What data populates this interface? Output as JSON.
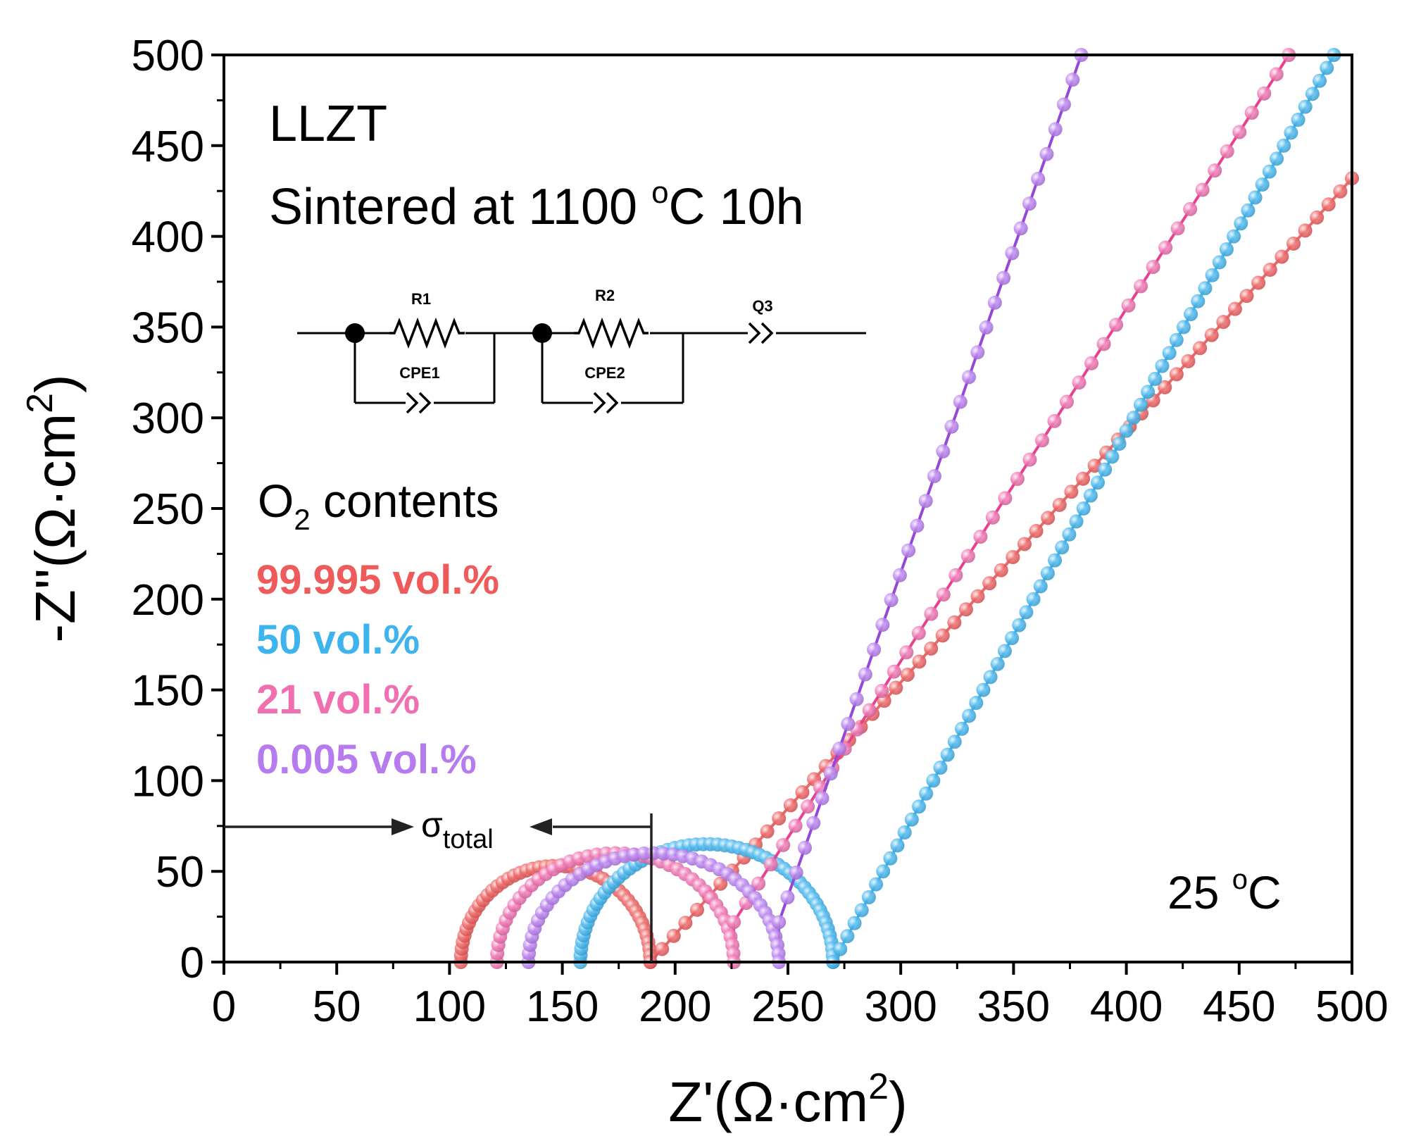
{
  "chart_data": {
    "type": "scatter",
    "title": "",
    "xlabel": "Z'(Ω·cm²)",
    "ylabel": "-Z''(Ω·cm²)",
    "xlim": [
      0,
      500
    ],
    "ylim": [
      0,
      500
    ],
    "xticks": [
      0,
      50,
      100,
      150,
      200,
      250,
      300,
      350,
      400,
      450,
      500
    ],
    "yticks": [
      0,
      50,
      100,
      150,
      200,
      250,
      300,
      350,
      400,
      450,
      500
    ],
    "grid": false,
    "annotations": {
      "material": "LLZT",
      "sintering": "Sintered at 1100 °C 10h",
      "temperature": "25 °C",
      "sigma": "σ",
      "sigma_sub": "total",
      "circuit": {
        "r1": "R1",
        "cpe1": "CPE1",
        "r2": "R2",
        "cpe2": "CPE2",
        "q3": "Q3"
      }
    },
    "legend": {
      "title": "O₂ contents",
      "position": "left"
    },
    "series": [
      {
        "name": "99.995 vol.%",
        "color": "#ef5b5b",
        "line_color": "#e9686c",
        "segments": [
          {
            "kind": "arc",
            "x_start": 105,
            "x_end": 189,
            "height": 53,
            "n": 45
          },
          {
            "kind": "line",
            "x_start": 189,
            "y_start": 0,
            "x_end": 500,
            "y_end": 432,
            "n": 60
          }
        ]
      },
      {
        "name": "50 vol.%",
        "color": "#3db4ee",
        "line_color": "#41b0e4",
        "segments": [
          {
            "kind": "arc",
            "x_start": 158,
            "x_end": 270,
            "height": 65,
            "n": 55
          },
          {
            "kind": "line",
            "x_start": 270,
            "y_start": 0,
            "x_end": 492,
            "y_end": 500,
            "n": 70
          }
        ]
      },
      {
        "name": "21 vol.%",
        "color": "#f06fb0",
        "line_color": "#e8408f",
        "segments": [
          {
            "kind": "arc",
            "x_start": 121,
            "x_end": 226,
            "height": 60,
            "n": 40
          },
          {
            "kind": "line",
            "x_start": 226,
            "y_start": 22,
            "x_end": 472,
            "y_end": 500,
            "n": 45
          }
        ]
      },
      {
        "name": "0.005 vol.%",
        "color": "#b77bf0",
        "line_color": "#9447d8",
        "segments": [
          {
            "kind": "arc",
            "x_start": 135,
            "x_end": 246,
            "height": 60,
            "n": 40
          },
          {
            "kind": "line",
            "x_start": 246,
            "y_start": 22,
            "x_end": 380,
            "y_end": 500,
            "n": 35
          }
        ]
      }
    ]
  }
}
